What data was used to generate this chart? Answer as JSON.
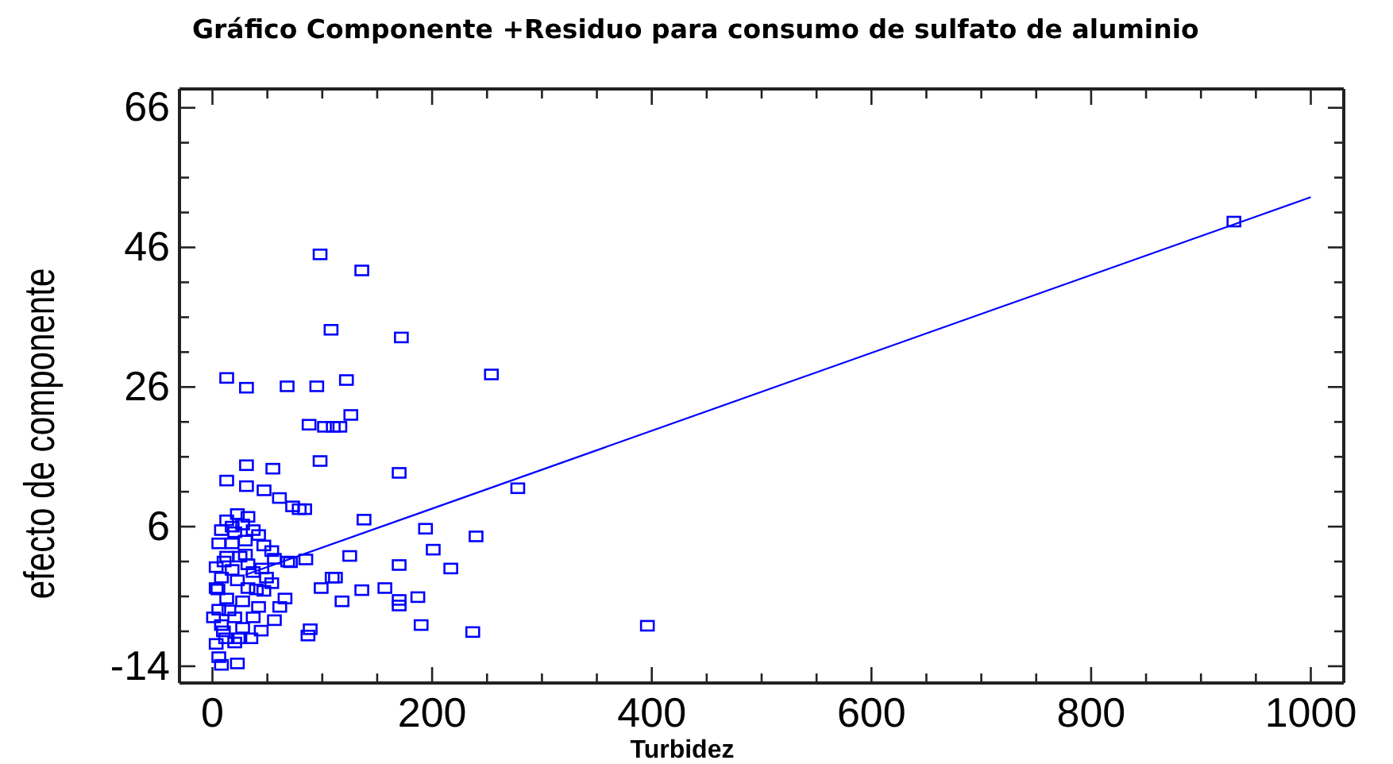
{
  "chart_data": {
    "type": "scatter",
    "title": "Gráfico Componente +Residuo para consumo de sulfato de aluminio",
    "xlabel": "Turbidez",
    "ylabel": "efecto de componente",
    "xlim": [
      -30,
      1030
    ],
    "ylim": [
      -16.4,
      68.7
    ],
    "xticks": [
      0,
      {
        "value": 50,
        "label": null
      },
      {
        "value": 100,
        "label": null
      },
      {
        "value": 150,
        "label": null
      },
      200,
      {
        "value": 250,
        "label": null
      },
      {
        "value": 300,
        "label": null
      },
      {
        "value": 350,
        "label": null
      },
      400,
      {
        "value": 450,
        "label": null
      },
      {
        "value": 500,
        "label": null
      },
      {
        "value": 550,
        "label": null
      },
      600,
      {
        "value": 650,
        "label": null
      },
      {
        "value": 700,
        "label": null
      },
      {
        "value": 750,
        "label": null
      },
      800,
      {
        "value": 850,
        "label": null
      },
      {
        "value": 900,
        "label": null
      },
      {
        "value": 950,
        "label": null
      },
      1000
    ],
    "yticks": [
      -14,
      {
        "value": -9,
        "label": null
      },
      {
        "value": -4,
        "label": null
      },
      {
        "value": 1,
        "label": null
      },
      6,
      {
        "value": 11,
        "label": null
      },
      {
        "value": 16,
        "label": null
      },
      {
        "value": 21,
        "label": null
      },
      26,
      {
        "value": 31,
        "label": null
      },
      {
        "value": 36,
        "label": null
      },
      {
        "value": 41,
        "label": null
      },
      46,
      {
        "value": 51,
        "label": null
      },
      {
        "value": 56,
        "label": null
      },
      {
        "value": 61,
        "label": null
      },
      66
    ],
    "grid": false,
    "marker": "square",
    "series": [
      {
        "color": "#0000ff",
        "x": [
          98,
          136,
          108,
          172,
          254,
          13,
          31,
          68,
          95,
          122,
          126,
          88,
          102,
          110,
          116,
          98,
          31,
          55,
          170,
          13,
          31,
          47,
          61,
          73,
          79,
          84,
          278,
          138,
          194,
          240,
          201,
          125,
          170,
          217,
          85,
          71,
          109,
          112,
          99,
          136,
          157,
          170,
          170,
          187,
          118,
          190,
          237,
          89,
          87,
          396,
          930,
          22.7,
          13,
          32.3,
          27.5,
          8.2,
          20.3,
          37.1,
          42,
          5.8,
          17.9,
          29.9,
          46.8,
          54,
          13,
          25.1,
          10.6,
          32.3,
          56.4,
          68.5,
          3.4,
          17.9,
          37.1,
          49.2,
          54,
          8.2,
          22.7,
          3.4,
          32.3,
          46.8,
          66.1,
          13,
          27.5,
          5.8,
          42,
          61.3,
          1,
          20.3,
          37.1,
          56.4,
          8.2,
          27.5,
          44.4,
          3.4,
          20.3,
          5.8,
          22.7,
          8.2,
          10,
          15,
          5,
          12,
          30,
          18,
          25,
          35,
          40,
          45
        ],
        "values": [
          45.0,
          42.7,
          34.2,
          33.1,
          27.8,
          27.3,
          25.9,
          26.1,
          26.1,
          27.0,
          22.0,
          20.6,
          20.3,
          20.3,
          20.3,
          15.4,
          14.8,
          14.3,
          13.7,
          12.6,
          11.8,
          11.2,
          10.1,
          8.9,
          8.5,
          8.5,
          11.5,
          7.0,
          5.7,
          4.6,
          2.7,
          1.8,
          0.5,
          0.0,
          1.3,
          0.9,
          -1.3,
          -1.3,
          -2.8,
          -3.1,
          -2.8,
          -4.5,
          -5.3,
          -4.1,
          -4.7,
          -8.1,
          -9.1,
          -8.7,
          -9.6,
          -8.2,
          49.7,
          7.8,
          6.9,
          7.4,
          6.3,
          5.5,
          5.2,
          5.5,
          4.8,
          3.6,
          3.6,
          4.0,
          3.3,
          2.5,
          1.7,
          1.7,
          1.0,
          0.6,
          1.4,
          1.0,
          0.2,
          -0.2,
          -0.5,
          -1.3,
          -2.1,
          -1.3,
          -1.7,
          -2.8,
          -2.8,
          -3.2,
          -4.3,
          -4.3,
          -4.7,
          -5.9,
          -5.5,
          -5.5,
          -7.0,
          -7.0,
          -7.0,
          -7.4,
          -8.1,
          -8.5,
          -8.9,
          -10.8,
          -10.6,
          -12.7,
          -13.6,
          -13.8,
          -9.0,
          -6.0,
          -3.0,
          -10.0,
          2.0,
          6.0,
          -10.0,
          -10.0,
          -3.0,
          0.0
        ]
      },
      {
        "type": "line",
        "color": "#0000ff",
        "x": [
          30,
          1000
        ],
        "values": [
          -0.9,
          53.2
        ],
        "marker": "none"
      }
    ]
  }
}
